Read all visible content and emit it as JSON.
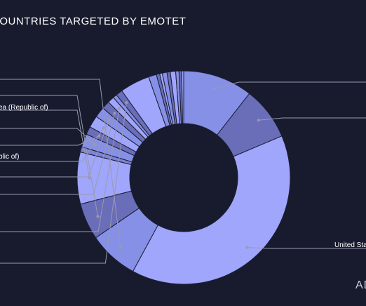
{
  "chart_data": {
    "type": "pie",
    "donut": true,
    "title": "COUNTRIES TARGETED BY EMOTET",
    "watermark": "AD",
    "visible_labels": [
      "United States",
      "Korea (Republic of)",
      "Iran (Islamic Republic of)"
    ],
    "categories": [
      "",
      "",
      "United States",
      "",
      "",
      "",
      "",
      "",
      "",
      "",
      "",
      "",
      "",
      "",
      "",
      "",
      "",
      "",
      "",
      "",
      "",
      "",
      "",
      "",
      ""
    ],
    "values": [
      10.5,
      8.0,
      39.0,
      7.5,
      5.5,
      7.8,
      0.8,
      2.0,
      1.2,
      1.8,
      1.6,
      1.2,
      1.0,
      0.6,
      1.0,
      4.5,
      1.2,
      0.5,
      0.4,
      0.7,
      0.5,
      0.8,
      0.5,
      0.4,
      0.3
    ],
    "colors": [
      "#8590e6",
      "#6a6db8",
      "#a0a6fb",
      "#8590e6",
      "#6a6db8",
      "#a0a6fb",
      "#7d83d6",
      "#8590e6",
      "#6a6db8",
      "#a0a6fb",
      "#8590e6",
      "#6a6db8",
      "#a0a6fb",
      "#8590e6",
      "#6a6db8",
      "#a0a6fb",
      "#8590e6",
      "#6a6db8",
      "#a0a6fb",
      "#8590e6",
      "#6a6db8",
      "#a0a6fb",
      "#8590e6",
      "#6a6db8",
      "#a0a6fb"
    ],
    "legend": "none"
  }
}
